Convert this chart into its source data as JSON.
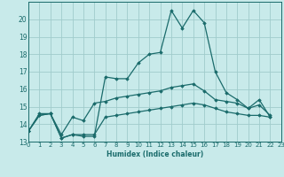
{
  "xlabel": "Humidex (Indice chaleur)",
  "background_color": "#c8eaea",
  "grid_color": "#a0cccc",
  "line_color": "#1a6b6b",
  "xlim": [
    0,
    23
  ],
  "ylim": [
    13,
    21
  ],
  "yticks": [
    13,
    14,
    15,
    16,
    17,
    18,
    19,
    20
  ],
  "xticks": [
    0,
    1,
    2,
    3,
    4,
    5,
    6,
    7,
    8,
    9,
    10,
    11,
    12,
    13,
    14,
    15,
    16,
    17,
    18,
    19,
    20,
    21,
    22,
    23
  ],
  "series": [
    [
      13.6,
      14.5,
      14.6,
      13.2,
      13.4,
      13.3,
      13.3,
      16.7,
      16.6,
      16.6,
      17.5,
      18.0,
      18.1,
      20.5,
      19.5,
      20.5,
      19.8,
      17.0,
      15.8,
      15.4,
      14.9,
      15.4,
      14.4,
      null
    ],
    [
      13.6,
      14.6,
      14.6,
      13.4,
      14.4,
      14.2,
      15.2,
      15.3,
      15.5,
      15.6,
      15.7,
      15.8,
      15.9,
      16.1,
      16.2,
      16.3,
      15.9,
      15.4,
      15.3,
      15.2,
      14.9,
      15.1,
      14.5,
      null
    ],
    [
      13.6,
      14.5,
      14.6,
      13.2,
      13.4,
      13.4,
      13.4,
      14.4,
      14.5,
      14.6,
      14.7,
      14.8,
      14.9,
      15.0,
      15.1,
      15.2,
      15.1,
      14.9,
      14.7,
      14.6,
      14.5,
      14.5,
      14.4,
      null
    ]
  ]
}
